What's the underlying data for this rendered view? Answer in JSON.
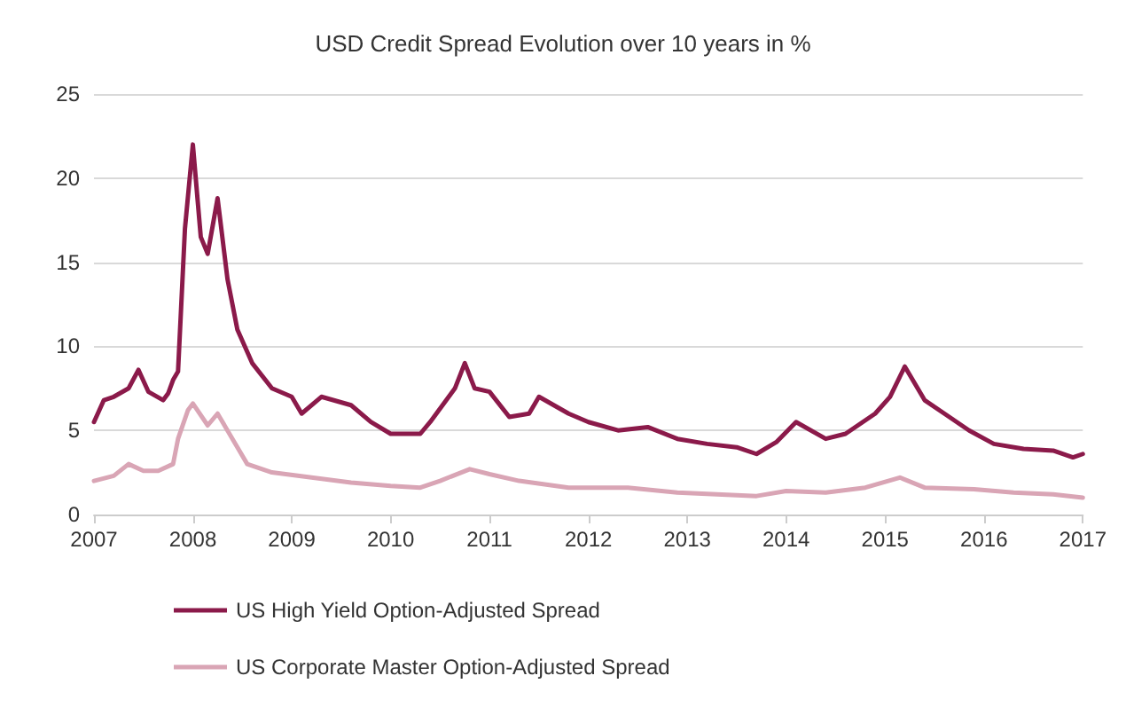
{
  "chart_data": {
    "type": "line",
    "title": "USD Credit Spread Evolution over 10 years in %",
    "xlim": [
      2007,
      2017
    ],
    "xticks": [
      2007,
      2008,
      2009,
      2010,
      2011,
      2012,
      2013,
      2014,
      2015,
      2016,
      2017
    ],
    "ylim": [
      0,
      25
    ],
    "yticks": [
      0,
      5,
      10,
      15,
      20,
      25
    ],
    "grid": "y",
    "legend": "bottom",
    "marker": "none",
    "line_style": "solid",
    "series": [
      {
        "name": "US High Yield Option-Adjusted Spread",
        "color": "#8b1a4a",
        "x": [
          2007,
          2007.1,
          2007.2,
          2007.35,
          2007.45,
          2007.55,
          2007.7,
          2007.75,
          2007.8,
          2007.85,
          2007.92,
          2008,
          2008.08,
          2008.15,
          2008.25,
          2008.35,
          2008.45,
          2008.6,
          2008.8,
          2009,
          2009.1,
          2009.3,
          2009.6,
          2009.8,
          2010,
          2010.3,
          2010.4,
          2010.65,
          2010.75,
          2010.85,
          2011,
          2011.2,
          2011.4,
          2011.5,
          2011.8,
          2012,
          2012.3,
          2012.6,
          2012.9,
          2013.2,
          2013.5,
          2013.7,
          2013.9,
          2014.1,
          2014.4,
          2014.6,
          2014.9,
          2015.05,
          2015.2,
          2015.4,
          2015.6,
          2015.85,
          2016.1,
          2016.4,
          2016.7,
          2016.9,
          2017
        ],
        "values": [
          5.5,
          6.8,
          7,
          7.5,
          8.6,
          7.3,
          6.8,
          7.2,
          8,
          8.5,
          17,
          22,
          16.5,
          15.5,
          18.8,
          14,
          11,
          9,
          7.5,
          7,
          6,
          7,
          6.5,
          5.5,
          4.8,
          4.8,
          5.5,
          7.5,
          9,
          7.5,
          7.3,
          5.8,
          6,
          7,
          6,
          5.5,
          5,
          5.2,
          4.5,
          4.2,
          4,
          3.6,
          4.3,
          5.5,
          4.5,
          4.8,
          6,
          7,
          8.8,
          6.8,
          6,
          5,
          4.2,
          3.9,
          3.8,
          3.4,
          3.6
        ]
      },
      {
        "name": "US Corporate Master Option-Adjusted Spread",
        "color": "#d9a5b5",
        "x": [
          2007,
          2007.2,
          2007.35,
          2007.5,
          2007.65,
          2007.8,
          2007.85,
          2007.95,
          2008,
          2008.15,
          2008.25,
          2008.4,
          2008.55,
          2008.8,
          2009.2,
          2009.6,
          2010,
          2010.3,
          2010.5,
          2010.8,
          2011,
          2011.3,
          2011.8,
          2012.4,
          2012.9,
          2013.3,
          2013.7,
          2014,
          2014.4,
          2014.8,
          2015.15,
          2015.4,
          2015.9,
          2016.3,
          2016.7,
          2017
        ],
        "values": [
          2,
          2.3,
          3,
          2.6,
          2.6,
          3,
          4.5,
          6.2,
          6.6,
          5.3,
          6,
          4.5,
          3,
          2.5,
          2.2,
          1.9,
          1.7,
          1.6,
          2,
          2.7,
          2.4,
          2,
          1.6,
          1.6,
          1.3,
          1.2,
          1.1,
          1.4,
          1.3,
          1.6,
          2.2,
          1.6,
          1.5,
          1.3,
          1.2,
          1
        ]
      }
    ]
  }
}
